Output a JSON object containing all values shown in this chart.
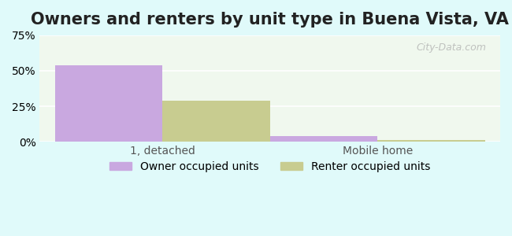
{
  "title": "Owners and renters by unit type in Buena Vista, VA",
  "categories": [
    "1, detached",
    "Mobile home"
  ],
  "owner_values": [
    54.0,
    4.0
  ],
  "renter_values": [
    29.0,
    1.0
  ],
  "owner_color": "#c9a8e0",
  "renter_color": "#c8cc90",
  "ylim": [
    0,
    75
  ],
  "yticks": [
    0,
    25,
    50,
    75
  ],
  "yticklabels": [
    "0%",
    "25%",
    "50%",
    "75%"
  ],
  "background_color": "#e0fafa",
  "plot_bg_color_top": "#f0f8ee",
  "plot_bg_color_bottom": "#e8f8e8",
  "bar_width": 0.35,
  "title_fontsize": 15,
  "tick_fontsize": 10,
  "legend_fontsize": 10,
  "legend_owner": "Owner occupied units",
  "legend_renter": "Renter occupied units",
  "watermark": "City-Data.com"
}
